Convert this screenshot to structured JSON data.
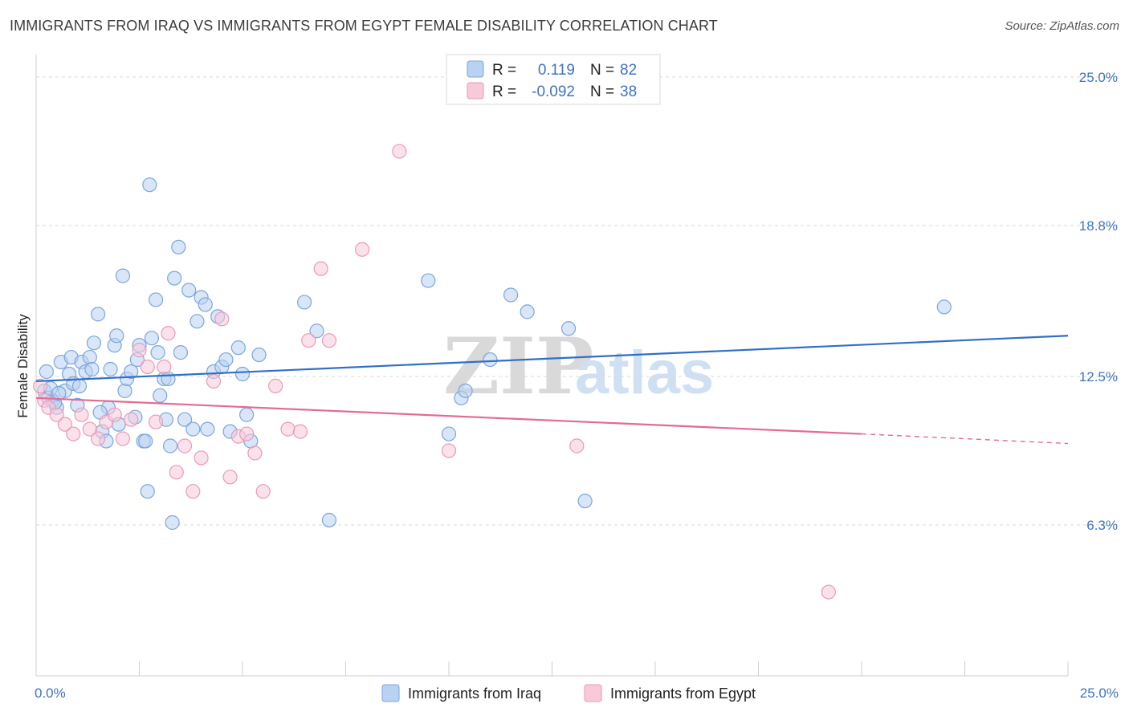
{
  "title": "IMMIGRANTS FROM IRAQ VS IMMIGRANTS FROM EGYPT FEMALE DISABILITY CORRELATION CHART",
  "source": "Source: ZipAtlas.com",
  "watermark": {
    "zip": "ZIP",
    "atlas": "atlas"
  },
  "colors": {
    "iraq_fill": "#b9d2f2",
    "iraq_stroke": "#7aa6de",
    "iraq_line": "#2f6fc9",
    "egypt_fill": "#f8c9d8",
    "egypt_stroke": "#eb9ab5",
    "egypt_line": "#e46a93",
    "tick_text": "#3f73c4",
    "grid": "#d9d9d9"
  },
  "legend_top": {
    "r_label": "R =",
    "n_label": "N =",
    "rows": [
      {
        "r": "0.119",
        "n": "82"
      },
      {
        "r": "-0.092",
        "n": "38"
      }
    ]
  },
  "chart_data": {
    "type": "scatter",
    "xlabel": "",
    "ylabel": "Female Disability",
    "xlim": [
      0,
      25
    ],
    "ylim": [
      0,
      25
    ],
    "x_tick_labels": [
      "0.0%",
      "25.0%"
    ],
    "y_ticks": [
      {
        "value": 6.3,
        "label": "6.3%"
      },
      {
        "value": 12.5,
        "label": "12.5%"
      },
      {
        "value": 18.8,
        "label": "18.8%"
      },
      {
        "value": 25.0,
        "label": "25.0%"
      }
    ],
    "grid": "horizontal dashed",
    "legend_placement": "top-center and bottom",
    "series": [
      {
        "name": "Immigrants from Iraq",
        "trend": {
          "x": [
            0,
            25
          ],
          "y": [
            12.3,
            14.2
          ]
        },
        "points": [
          [
            0.2,
            11.9
          ],
          [
            0.3,
            11.6
          ],
          [
            0.4,
            11.5
          ],
          [
            0.25,
            12.7
          ],
          [
            0.5,
            11.2
          ],
          [
            0.6,
            13.1
          ],
          [
            0.7,
            11.9
          ],
          [
            0.8,
            12.6
          ],
          [
            0.9,
            12.2
          ],
          [
            0.85,
            13.3
          ],
          [
            1.0,
            11.3
          ],
          [
            1.05,
            12.1
          ],
          [
            1.1,
            13.1
          ],
          [
            1.2,
            12.7
          ],
          [
            1.3,
            13.3
          ],
          [
            1.35,
            12.8
          ],
          [
            1.4,
            13.9
          ],
          [
            1.5,
            15.1
          ],
          [
            1.6,
            10.2
          ],
          [
            1.7,
            9.8
          ],
          [
            1.75,
            11.2
          ],
          [
            1.8,
            12.8
          ],
          [
            1.9,
            13.8
          ],
          [
            1.95,
            14.2
          ],
          [
            2.0,
            10.5
          ],
          [
            2.1,
            16.7
          ],
          [
            2.15,
            11.9
          ],
          [
            2.2,
            12.4
          ],
          [
            2.3,
            12.7
          ],
          [
            2.4,
            10.8
          ],
          [
            2.5,
            13.8
          ],
          [
            2.6,
            9.8
          ],
          [
            2.7,
            7.7
          ],
          [
            2.75,
            20.5
          ],
          [
            2.8,
            14.1
          ],
          [
            2.9,
            15.7
          ],
          [
            2.95,
            13.5
          ],
          [
            3.0,
            11.7
          ],
          [
            3.1,
            12.4
          ],
          [
            3.2,
            12.4
          ],
          [
            3.25,
            9.6
          ],
          [
            3.3,
            6.4
          ],
          [
            3.35,
            16.6
          ],
          [
            3.45,
            17.9
          ],
          [
            3.5,
            13.5
          ],
          [
            3.6,
            10.7
          ],
          [
            3.7,
            16.1
          ],
          [
            3.8,
            10.3
          ],
          [
            3.9,
            14.8
          ],
          [
            4.0,
            15.8
          ],
          [
            4.1,
            15.5
          ],
          [
            4.3,
            12.7
          ],
          [
            4.4,
            15.0
          ],
          [
            4.5,
            12.9
          ],
          [
            4.6,
            13.2
          ],
          [
            4.7,
            10.2
          ],
          [
            4.9,
            13.7
          ],
          [
            5.0,
            12.6
          ],
          [
            5.1,
            10.9
          ],
          [
            5.2,
            9.8
          ],
          [
            5.4,
            13.4
          ],
          [
            6.5,
            15.6
          ],
          [
            6.8,
            14.4
          ],
          [
            7.1,
            6.5
          ],
          [
            9.5,
            16.5
          ],
          [
            10.0,
            10.1
          ],
          [
            10.3,
            11.6
          ],
          [
            10.4,
            11.9
          ],
          [
            11.0,
            13.2
          ],
          [
            11.5,
            15.9
          ],
          [
            11.9,
            15.2
          ],
          [
            12.9,
            14.5
          ],
          [
            13.3,
            7.3
          ],
          [
            22.0,
            15.4
          ],
          [
            0.35,
            12.0
          ],
          [
            0.45,
            11.4
          ],
          [
            2.65,
            9.8
          ],
          [
            3.15,
            10.7
          ],
          [
            4.15,
            10.3
          ],
          [
            1.55,
            11.0
          ],
          [
            2.45,
            13.2
          ],
          [
            0.55,
            11.8
          ]
        ]
      },
      {
        "name": "Immigrants from Egypt",
        "trend": {
          "x": [
            0,
            20
          ],
          "y": [
            11.6,
            10.1
          ]
        },
        "trend_dashed": {
          "x": [
            20,
            25
          ],
          "y": [
            10.1,
            9.7
          ]
        },
        "points": [
          [
            0.1,
            12.1
          ],
          [
            0.2,
            11.5
          ],
          [
            0.3,
            11.2
          ],
          [
            0.5,
            10.9
          ],
          [
            0.7,
            10.5
          ],
          [
            0.9,
            10.1
          ],
          [
            1.1,
            10.9
          ],
          [
            1.3,
            10.3
          ],
          [
            1.5,
            9.9
          ],
          [
            1.7,
            10.6
          ],
          [
            1.9,
            10.9
          ],
          [
            2.1,
            9.9
          ],
          [
            2.3,
            10.7
          ],
          [
            2.5,
            13.6
          ],
          [
            2.7,
            12.9
          ],
          [
            2.9,
            10.6
          ],
          [
            3.1,
            12.9
          ],
          [
            3.2,
            14.3
          ],
          [
            3.4,
            8.5
          ],
          [
            3.6,
            9.6
          ],
          [
            3.8,
            7.7
          ],
          [
            4.0,
            9.1
          ],
          [
            4.3,
            12.3
          ],
          [
            4.5,
            14.9
          ],
          [
            4.7,
            8.3
          ],
          [
            4.9,
            10.0
          ],
          [
            5.1,
            10.1
          ],
          [
            5.3,
            9.3
          ],
          [
            5.5,
            7.7
          ],
          [
            5.8,
            12.1
          ],
          [
            6.1,
            10.3
          ],
          [
            6.4,
            10.2
          ],
          [
            6.6,
            14.0
          ],
          [
            6.9,
            17.0
          ],
          [
            7.1,
            14.0
          ],
          [
            7.9,
            17.8
          ],
          [
            8.8,
            21.9
          ],
          [
            10.0,
            9.4
          ],
          [
            13.1,
            9.6
          ],
          [
            19.2,
            3.5
          ]
        ]
      }
    ]
  },
  "legend_bottom": [
    {
      "label": "Immigrants from Iraq"
    },
    {
      "label": "Immigrants from Egypt"
    }
  ]
}
